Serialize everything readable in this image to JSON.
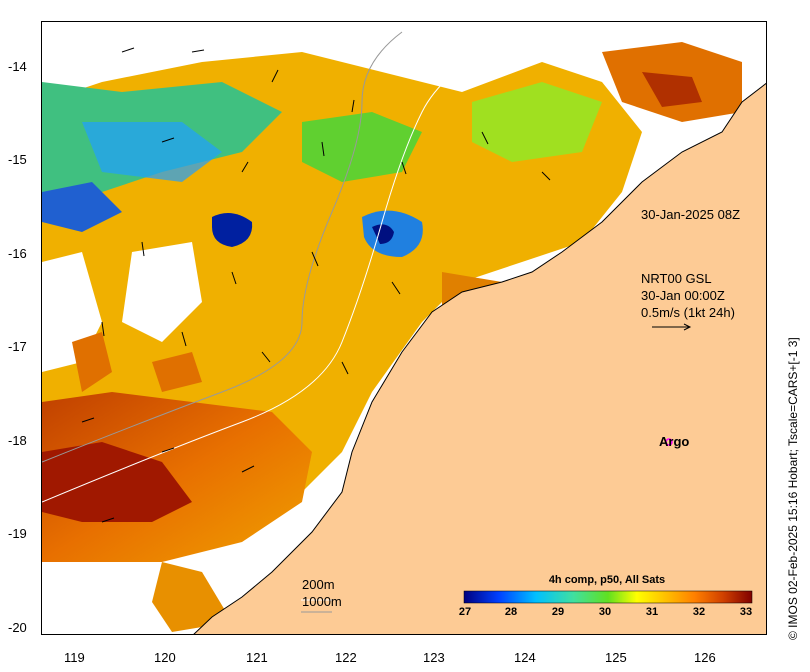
{
  "axes": {
    "x_ticks": [
      "119",
      "120",
      "121",
      "122",
      "123",
      "124",
      "125",
      "126"
    ],
    "y_ticks": [
      "-14",
      "-15",
      "-16",
      "-17",
      "-18",
      "-19",
      "-20"
    ],
    "lon_range": [
      118.6,
      126.7
    ],
    "lat_range": [
      -20.1,
      -13.5
    ]
  },
  "annotations": {
    "timestamp": "30-Jan-2025 08Z",
    "current_product_line1": "NRT00 GSL",
    "current_product_line2": "30-Jan 00:00Z",
    "current_scale": "0.5m/s (1kt 24h)",
    "isobath_200": "200m",
    "isobath_1000": "1000m"
  },
  "argo": {
    "label": "Argo",
    "lon": 125.3,
    "lat": -18.0,
    "color": "#ff00ff"
  },
  "colorbar": {
    "title": "4h comp, p50, All Sats",
    "ticks": [
      "27",
      "28",
      "29",
      "30",
      "31",
      "32",
      "33"
    ],
    "range": [
      27,
      33
    ],
    "colors": [
      "#00007f",
      "#0040ff",
      "#00c0ff",
      "#40e0a0",
      "#60e020",
      "#ffff00",
      "#ffc000",
      "#ff8000",
      "#d04000",
      "#800000"
    ]
  },
  "credit": "© IMOS 02-Feb-2025 15:16 Hobart; Tscale=CARS+[-1 3]",
  "colors": {
    "land": "#fdcb95",
    "no_data": "#ffffff",
    "coastline": "#000000"
  }
}
